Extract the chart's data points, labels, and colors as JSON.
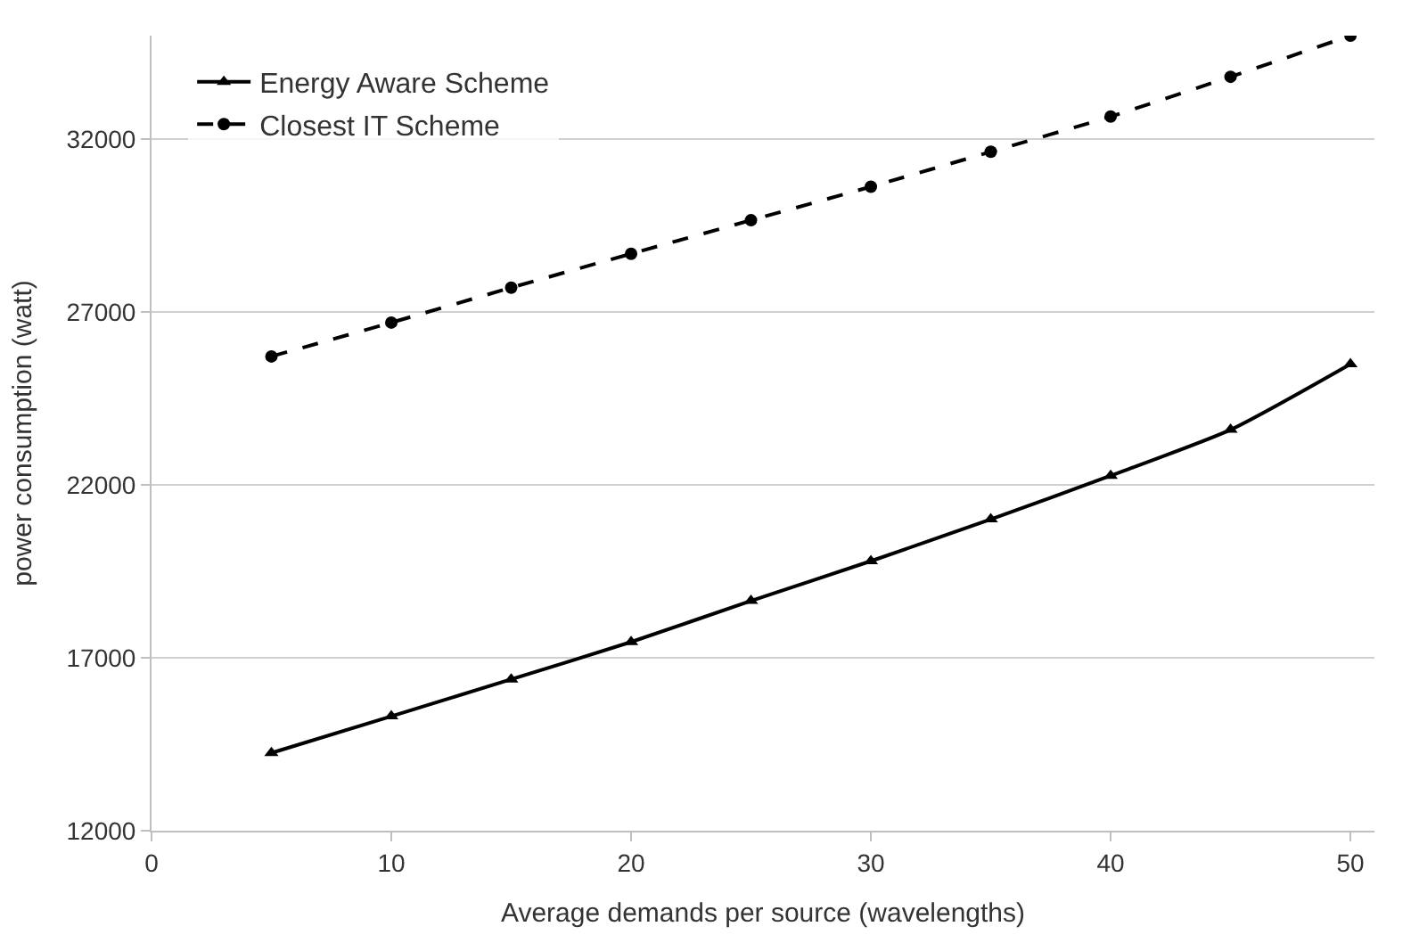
{
  "chart_data": {
    "type": "line",
    "xlabel": "Average demands per source (wavelengths)",
    "ylabel": "power consumption (watt)",
    "x": [
      5,
      10,
      15,
      20,
      25,
      30,
      35,
      40,
      45,
      50
    ],
    "series": [
      {
        "name": "Energy Aware Scheme",
        "color": "#000000",
        "marker": "triangle",
        "line_style": "solid",
        "values": [
          14250,
          15310,
          16380,
          17460,
          18650,
          19800,
          21010,
          22270,
          23600,
          25500
        ]
      },
      {
        "name": "Closest IT Scheme",
        "color": "#000000",
        "marker": "circle",
        "line_style": "dashed",
        "values": [
          25720,
          26700,
          27710,
          28690,
          29660,
          30630,
          31640,
          32660,
          33810,
          35000
        ]
      }
    ],
    "xlim": [
      0,
      51
    ],
    "xticks": [
      0,
      10,
      20,
      30,
      40,
      50
    ],
    "ylim": [
      12000,
      35000
    ],
    "yticks": [
      12000,
      17000,
      22000,
      27000,
      32000
    ],
    "grid": "y",
    "legend": "top left"
  }
}
